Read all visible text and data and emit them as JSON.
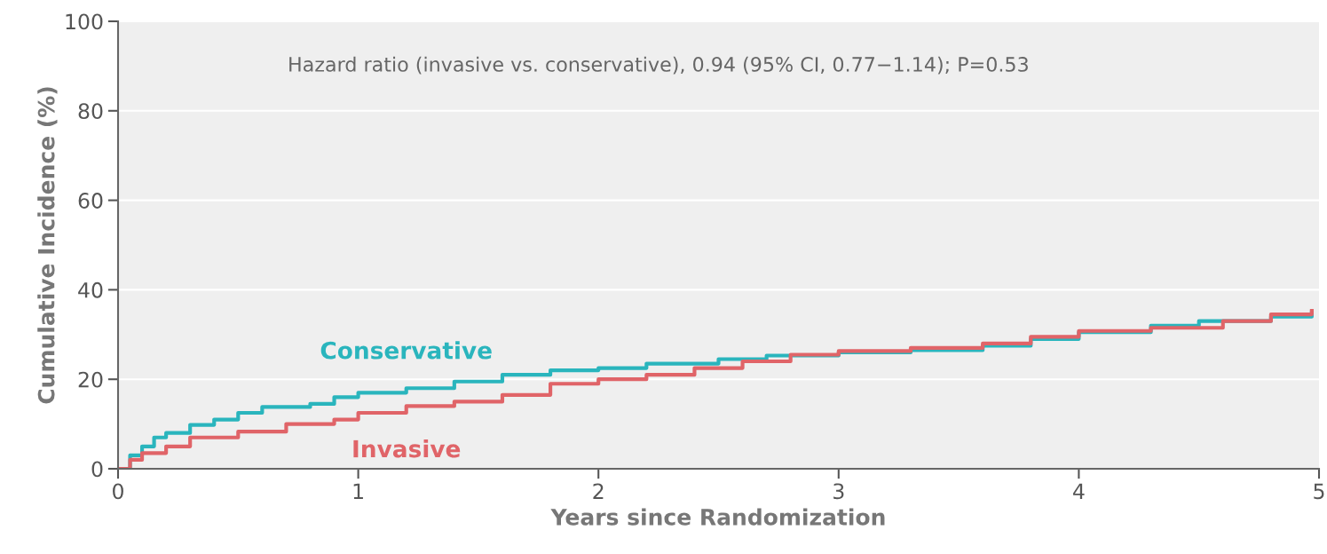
{
  "chart_data": {
    "type": "step",
    "xlabel": "Years since Randomization",
    "ylabel": "Cumulative Incidence (%)",
    "annotations": [
      "Hazard ratio (invasive vs. conservative), 0.94 (95% CI, 0.77−1.14); P=0.53"
    ],
    "xlim": [
      0,
      5
    ],
    "ylim": [
      0,
      100
    ],
    "xticks": [
      0,
      1,
      2,
      3,
      4,
      5
    ],
    "yticks": [
      0,
      20,
      40,
      60,
      80,
      100
    ],
    "grid": "y",
    "legend": false,
    "marker": "none",
    "line_style": "solid",
    "series": [
      {
        "name": "Conservative",
        "color": "#2ab5bd",
        "x": [
          0,
          0.05,
          0.1,
          0.15,
          0.2,
          0.3,
          0.4,
          0.5,
          0.6,
          0.8,
          0.9,
          1.0,
          1.2,
          1.4,
          1.6,
          1.8,
          2.0,
          2.2,
          2.5,
          2.7,
          3.0,
          3.3,
          3.6,
          3.8,
          4.0,
          4.3,
          4.5,
          4.8,
          4.97
        ],
        "values": [
          0,
          3,
          5,
          7,
          8,
          9.8,
          11,
          12.5,
          13.8,
          14.5,
          16,
          17,
          18,
          19.5,
          21,
          22,
          22.5,
          23.5,
          24.5,
          25.3,
          26,
          26.5,
          27.5,
          29,
          30.5,
          32,
          33,
          34,
          35
        ]
      },
      {
        "name": "Invasive",
        "color": "#e06468",
        "x": [
          0,
          0.05,
          0.1,
          0.2,
          0.3,
          0.5,
          0.7,
          0.9,
          1.0,
          1.2,
          1.4,
          1.6,
          1.8,
          2.0,
          2.2,
          2.4,
          2.6,
          2.8,
          3.0,
          3.3,
          3.6,
          3.8,
          4.0,
          4.3,
          4.6,
          4.8,
          4.97
        ],
        "values": [
          0,
          2,
          3.5,
          5,
          7,
          8.3,
          10,
          11,
          12.5,
          14,
          15,
          16.5,
          19,
          20,
          21,
          22.5,
          24,
          25.5,
          26.3,
          27,
          28,
          29.5,
          30.8,
          31.5,
          33,
          34.5,
          35.3
        ]
      }
    ]
  }
}
